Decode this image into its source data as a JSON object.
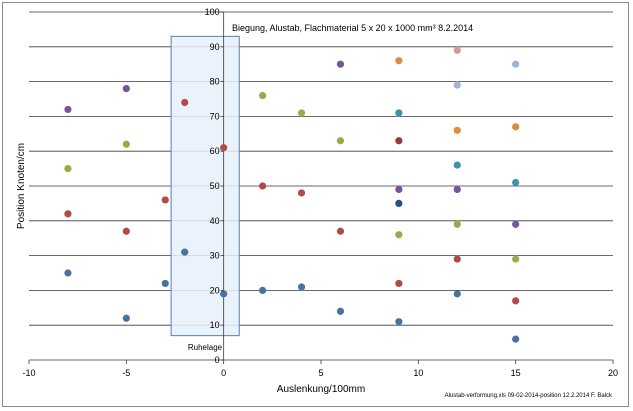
{
  "chart_data": {
    "type": "scatter",
    "title": "Biegung, Alustab, Flachmaterial 5 x 20 x 1000 mm³     8.2.2014",
    "xlabel": "Auslenkung/100mm",
    "ylabel": "Position Knoten/cm",
    "xlim": [
      -10,
      20
    ],
    "ylim": [
      0,
      100
    ],
    "x_ticks": [
      "-10",
      "-5",
      "0",
      "5",
      "10",
      "15",
      "20"
    ],
    "y_ticks": [
      "0",
      "10",
      "20",
      "30",
      "40",
      "50",
      "60",
      "70",
      "80",
      "90",
      "100"
    ],
    "grid": "horizontal",
    "legend": "none",
    "annotation": "Ruhelage",
    "footnote": "Alustab-verformung.xls 09-02-2014-position  12.2.2014 F. Balck",
    "highlight_region": {
      "x": [
        -2.7,
        0.8
      ],
      "y": [
        7,
        93
      ],
      "color": "#e6f0fa",
      "border": "#5a7fb5"
    },
    "series": [
      {
        "color": "#4a72a0",
        "points": [
          [
            -8,
            25
          ],
          [
            -5,
            12
          ],
          [
            -3,
            22
          ],
          [
            -2,
            31
          ],
          [
            0,
            19
          ],
          [
            2,
            20
          ],
          [
            4,
            21
          ],
          [
            6,
            14
          ],
          [
            9,
            11
          ],
          [
            12,
            19
          ],
          [
            15,
            6
          ]
        ]
      },
      {
        "color": "#b24b48",
        "points": [
          [
            -8,
            42
          ],
          [
            -5,
            37
          ],
          [
            -3,
            46
          ],
          [
            -2,
            74
          ],
          [
            0,
            61
          ],
          [
            2,
            50
          ],
          [
            4,
            48
          ],
          [
            6,
            37
          ],
          [
            9,
            22
          ],
          [
            12,
            29
          ],
          [
            15,
            17
          ]
        ]
      },
      {
        "color": "#8fb048",
        "points": [
          [
            -8,
            55
          ],
          [
            -5,
            62
          ],
          [
            2,
            76
          ],
          [
            4,
            71
          ],
          [
            6,
            63
          ],
          [
            9,
            36
          ],
          [
            12,
            39
          ],
          [
            15,
            29
          ]
        ]
      },
      {
        "color": "#76559a",
        "points": [
          [
            -8,
            72
          ],
          [
            -5,
            78
          ],
          [
            6,
            85
          ],
          [
            9,
            49
          ],
          [
            12,
            49
          ],
          [
            15,
            39
          ]
        ]
      },
      {
        "color": "#3c94ae",
        "points": [
          [
            9,
            71
          ],
          [
            12,
            56
          ],
          [
            15,
            51
          ]
        ]
      },
      {
        "color": "#2e4d7a",
        "points": [
          [
            9,
            45
          ]
        ]
      },
      {
        "color": "#943c3a",
        "points": [
          [
            9,
            63
          ]
        ]
      },
      {
        "color": "#e08a3c",
        "points": [
          [
            9,
            86
          ],
          [
            12,
            66
          ],
          [
            15,
            67
          ]
        ]
      },
      {
        "color": "#d49896",
        "points": [
          [
            12,
            89
          ]
        ]
      },
      {
        "color": "#9db3d4",
        "points": [
          [
            12,
            79
          ],
          [
            15,
            85
          ]
        ]
      }
    ]
  }
}
